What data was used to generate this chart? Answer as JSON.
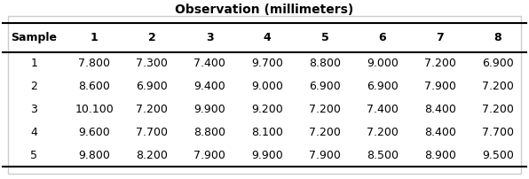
{
  "title": "Observation (millimeters)",
  "col_headers": [
    "Sample",
    "1",
    "2",
    "3",
    "4",
    "5",
    "6",
    "7",
    "8"
  ],
  "rows": [
    [
      "1",
      "7.800",
      "7.300",
      "7.400",
      "9.700",
      "8.800",
      "9.000",
      "7.200",
      "6.900"
    ],
    [
      "2",
      "8.600",
      "6.900",
      "9.400",
      "9.000",
      "6.900",
      "6.900",
      "7.900",
      "7.200"
    ],
    [
      "3",
      "10.100",
      "7.200",
      "9.900",
      "9.200",
      "7.200",
      "7.400",
      "8.400",
      "7.200"
    ],
    [
      "4",
      "9.600",
      "7.700",
      "8.800",
      "8.100",
      "7.200",
      "7.200",
      "8.400",
      "7.700"
    ],
    [
      "5",
      "9.800",
      "8.200",
      "7.900",
      "9.900",
      "7.900",
      "8.500",
      "8.900",
      "9.500"
    ]
  ],
  "background_color": "#ffffff",
  "border_color": "#000000",
  "outer_border_color": "#cccccc",
  "header_fontsize": 9,
  "cell_fontsize": 9,
  "title_fontsize": 10
}
